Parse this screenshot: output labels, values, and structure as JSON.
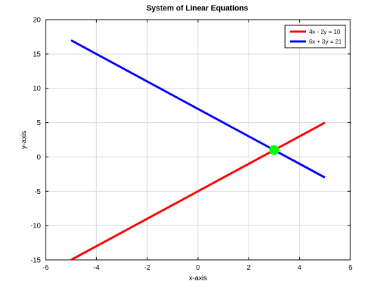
{
  "chart_data": {
    "type": "line",
    "title": "System of Linear Equations",
    "xlabel": "x-axis",
    "ylabel": "y-axis",
    "xlim": [
      -6,
      6
    ],
    "ylim": [
      -15,
      20
    ],
    "xticks": [
      "-6",
      "-4",
      "-2",
      "0",
      "2",
      "4",
      "6"
    ],
    "yticks": [
      "-15",
      "-10",
      "-5",
      "0",
      "5",
      "10",
      "15",
      "20"
    ],
    "grid": true,
    "legend_position": "top-right",
    "series": [
      {
        "name": "4x - 2y = 10",
        "color": "#ff0000",
        "x": [
          -5,
          5
        ],
        "y": [
          -15,
          5
        ]
      },
      {
        "name": "6x + 3y = 21",
        "color": "#0000ff",
        "x": [
          -5,
          5
        ],
        "y": [
          17,
          -3
        ]
      }
    ],
    "points": [
      {
        "x": 3,
        "y": 1,
        "color": "#00ff00"
      }
    ]
  }
}
